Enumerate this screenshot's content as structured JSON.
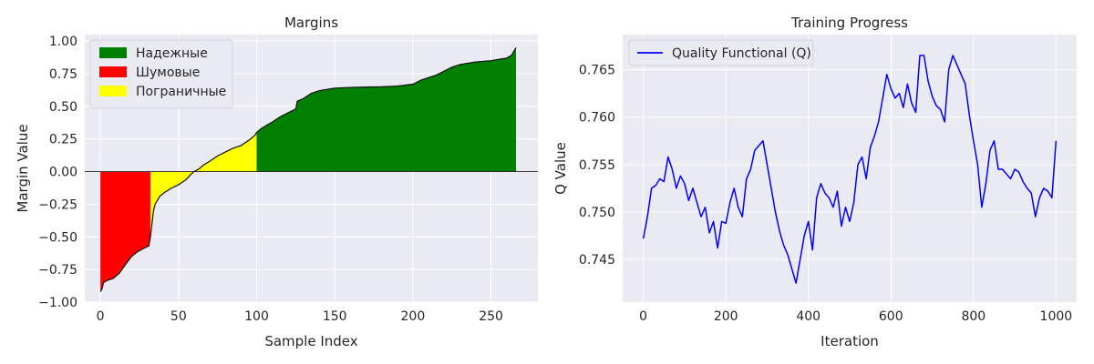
{
  "chart_data": [
    {
      "type": "area",
      "title": "Margins",
      "xlabel": "Sample Index",
      "ylabel": "Margin Value",
      "xlim": [
        -10,
        280
      ],
      "ylim": [
        -1.0,
        1.05
      ],
      "xticks": [
        0,
        50,
        100,
        150,
        200,
        250
      ],
      "yticks": [
        -1.0,
        -0.75,
        -0.5,
        -0.25,
        0.0,
        0.25,
        0.5,
        0.75,
        1.0
      ],
      "xtick_labels": [
        "0",
        "50",
        "100",
        "150",
        "200",
        "250"
      ],
      "ytick_labels": [
        "−1.00",
        "−0.75",
        "−0.50",
        "−0.25",
        "0.00",
        "0.25",
        "0.50",
        "0.75",
        "1.00"
      ],
      "grid": true,
      "legend_position": "top-left",
      "legend": [
        {
          "label": "Надежные",
          "color": "#008000"
        },
        {
          "label": "Шумовые",
          "color": "#ff0000"
        },
        {
          "label": "Пограничные",
          "color": "#ffff00"
        }
      ],
      "n_samples": 267,
      "segments": [
        {
          "name": "Шумовые",
          "from": 0,
          "to": 32,
          "color": "#ff0000"
        },
        {
          "name": "Пограничные",
          "from": 32,
          "to": 100,
          "color": "#ffff00"
        },
        {
          "name": "Надежные",
          "from": 100,
          "to": 266,
          "color": "#008000"
        }
      ],
      "curve": [
        [
          0,
          -0.92
        ],
        [
          1,
          -0.9
        ],
        [
          2,
          -0.85
        ],
        [
          5,
          -0.83
        ],
        [
          8,
          -0.82
        ],
        [
          10,
          -0.8
        ],
        [
          12,
          -0.78
        ],
        [
          15,
          -0.73
        ],
        [
          18,
          -0.68
        ],
        [
          20,
          -0.65
        ],
        [
          23,
          -0.62
        ],
        [
          26,
          -0.6
        ],
        [
          29,
          -0.58
        ],
        [
          31,
          -0.57
        ],
        [
          32,
          -0.5
        ],
        [
          33,
          -0.4
        ],
        [
          34,
          -0.3
        ],
        [
          35,
          -0.25
        ],
        [
          38,
          -0.19
        ],
        [
          41,
          -0.16
        ],
        [
          45,
          -0.13
        ],
        [
          50,
          -0.1
        ],
        [
          55,
          -0.06
        ],
        [
          58,
          -0.02
        ],
        [
          60,
          0.0
        ],
        [
          63,
          0.02
        ],
        [
          66,
          0.05
        ],
        [
          70,
          0.08
        ],
        [
          75,
          0.12
        ],
        [
          80,
          0.15
        ],
        [
          85,
          0.18
        ],
        [
          90,
          0.2
        ],
        [
          95,
          0.24
        ],
        [
          99,
          0.28
        ],
        [
          100,
          0.3
        ],
        [
          103,
          0.33
        ],
        [
          107,
          0.36
        ],
        [
          110,
          0.38
        ],
        [
          115,
          0.42
        ],
        [
          120,
          0.45
        ],
        [
          125,
          0.48
        ],
        [
          126,
          0.54
        ],
        [
          130,
          0.56
        ],
        [
          135,
          0.6
        ],
        [
          140,
          0.62
        ],
        [
          145,
          0.63
        ],
        [
          150,
          0.64
        ],
        [
          160,
          0.645
        ],
        [
          170,
          0.648
        ],
        [
          180,
          0.65
        ],
        [
          190,
          0.655
        ],
        [
          200,
          0.67
        ],
        [
          205,
          0.7
        ],
        [
          210,
          0.72
        ],
        [
          215,
          0.74
        ],
        [
          220,
          0.77
        ],
        [
          225,
          0.8
        ],
        [
          230,
          0.82
        ],
        [
          240,
          0.84
        ],
        [
          250,
          0.85
        ],
        [
          255,
          0.86
        ],
        [
          260,
          0.87
        ],
        [
          263,
          0.89
        ],
        [
          265,
          0.93
        ],
        [
          266,
          0.95
        ]
      ]
    },
    {
      "type": "line",
      "title": "Training Progress",
      "xlabel": "Iteration",
      "ylabel": "Q Value",
      "xlim": [
        -50,
        1050
      ],
      "ylim": [
        0.7405,
        0.7687
      ],
      "xticks": [
        0,
        200,
        400,
        600,
        800,
        1000
      ],
      "yticks": [
        0.745,
        0.75,
        0.755,
        0.76,
        0.765
      ],
      "xtick_labels": [
        "0",
        "200",
        "400",
        "600",
        "800",
        "1000"
      ],
      "ytick_labels": [
        "0.745",
        "0.750",
        "0.755",
        "0.760",
        "0.765"
      ],
      "grid": true,
      "legend_position": "top-left",
      "series": [
        {
          "name": "Quality Functional (Q)",
          "color": "#0000ff",
          "x": [
            0,
            10,
            20,
            30,
            40,
            50,
            60,
            70,
            80,
            90,
            100,
            110,
            120,
            130,
            140,
            150,
            160,
            170,
            180,
            190,
            200,
            210,
            220,
            230,
            240,
            250,
            260,
            270,
            280,
            290,
            300,
            310,
            320,
            330,
            340,
            350,
            360,
            370,
            380,
            390,
            400,
            410,
            420,
            430,
            440,
            450,
            460,
            470,
            480,
            490,
            500,
            510,
            520,
            530,
            540,
            550,
            560,
            570,
            580,
            590,
            600,
            610,
            620,
            630,
            640,
            650,
            660,
            670,
            680,
            690,
            700,
            710,
            720,
            730,
            740,
            750,
            760,
            770,
            780,
            790,
            800,
            810,
            820,
            830,
            840,
            850,
            860,
            870,
            880,
            890,
            900,
            910,
            920,
            930,
            940,
            950,
            960,
            970,
            980,
            990,
            1000
          ],
          "values": [
            0.7472,
            0.7495,
            0.7525,
            0.7528,
            0.7535,
            0.7532,
            0.7558,
            0.7545,
            0.7525,
            0.7538,
            0.753,
            0.7512,
            0.7525,
            0.751,
            0.7495,
            0.7505,
            0.7478,
            0.749,
            0.7462,
            0.749,
            0.7488,
            0.751,
            0.7525,
            0.7505,
            0.7495,
            0.7535,
            0.7545,
            0.7565,
            0.757,
            0.7575,
            0.755,
            0.7525,
            0.75,
            0.748,
            0.7465,
            0.7455,
            0.744,
            0.7425,
            0.745,
            0.7475,
            0.749,
            0.746,
            0.7515,
            0.753,
            0.752,
            0.7515,
            0.7505,
            0.7522,
            0.7485,
            0.7505,
            0.749,
            0.751,
            0.755,
            0.7558,
            0.7535,
            0.7568,
            0.758,
            0.7595,
            0.762,
            0.7645,
            0.763,
            0.762,
            0.7625,
            0.761,
            0.7635,
            0.7615,
            0.7605,
            0.7665,
            0.7665,
            0.7638,
            0.7622,
            0.7612,
            0.7608,
            0.7595,
            0.765,
            0.7665,
            0.7655,
            0.7645,
            0.7635,
            0.7602,
            0.7575,
            0.755,
            0.7505,
            0.753,
            0.7565,
            0.7575,
            0.7545,
            0.7545,
            0.754,
            0.7535,
            0.7545,
            0.7542,
            0.7532,
            0.7525,
            0.752,
            0.7495,
            0.7515,
            0.7525,
            0.7522,
            0.7515,
            0.7575
          ]
        }
      ]
    }
  ]
}
